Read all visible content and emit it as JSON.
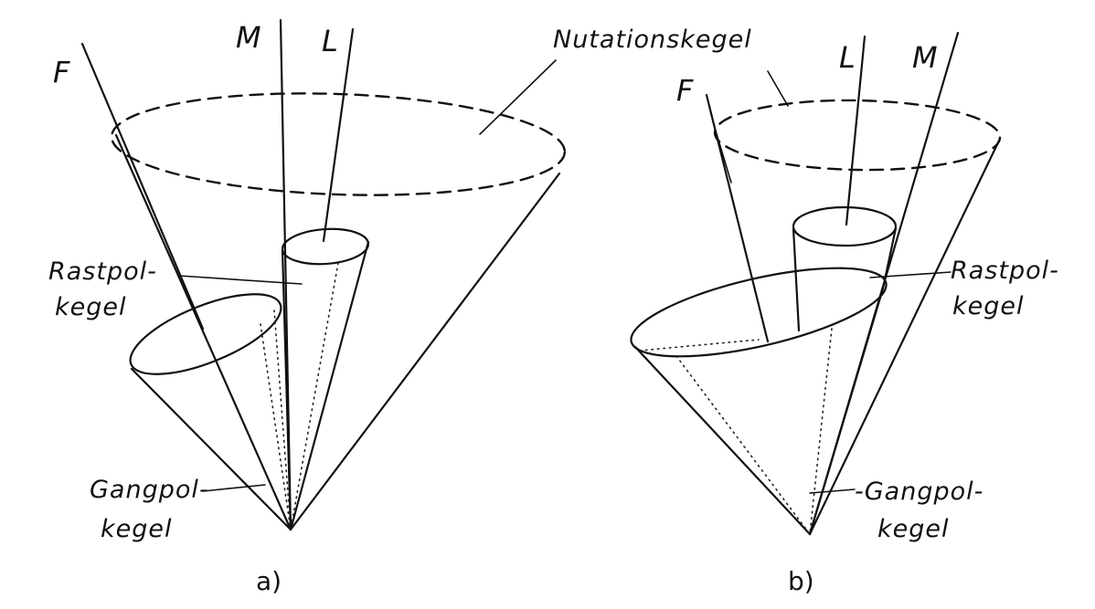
{
  "panel_a": {
    "axis_m": "M",
    "axis_l": "L",
    "axis_f": "F",
    "nutation": "Nutationskegel",
    "rastpol_line1": "Rastpol-",
    "rastpol_line2": "kegel",
    "gangpol_line1": "Gangpol-",
    "gangpol_line2": "kegel",
    "caption": "a)"
  },
  "panel_b": {
    "axis_f": "F",
    "axis_l": "L",
    "axis_m": "M",
    "rastpol_line1": "Rastpol-",
    "rastpol_line2": "kegel",
    "gangpol_line1": "-Gangpol-",
    "gangpol_line2": "kegel",
    "caption": "b)"
  }
}
